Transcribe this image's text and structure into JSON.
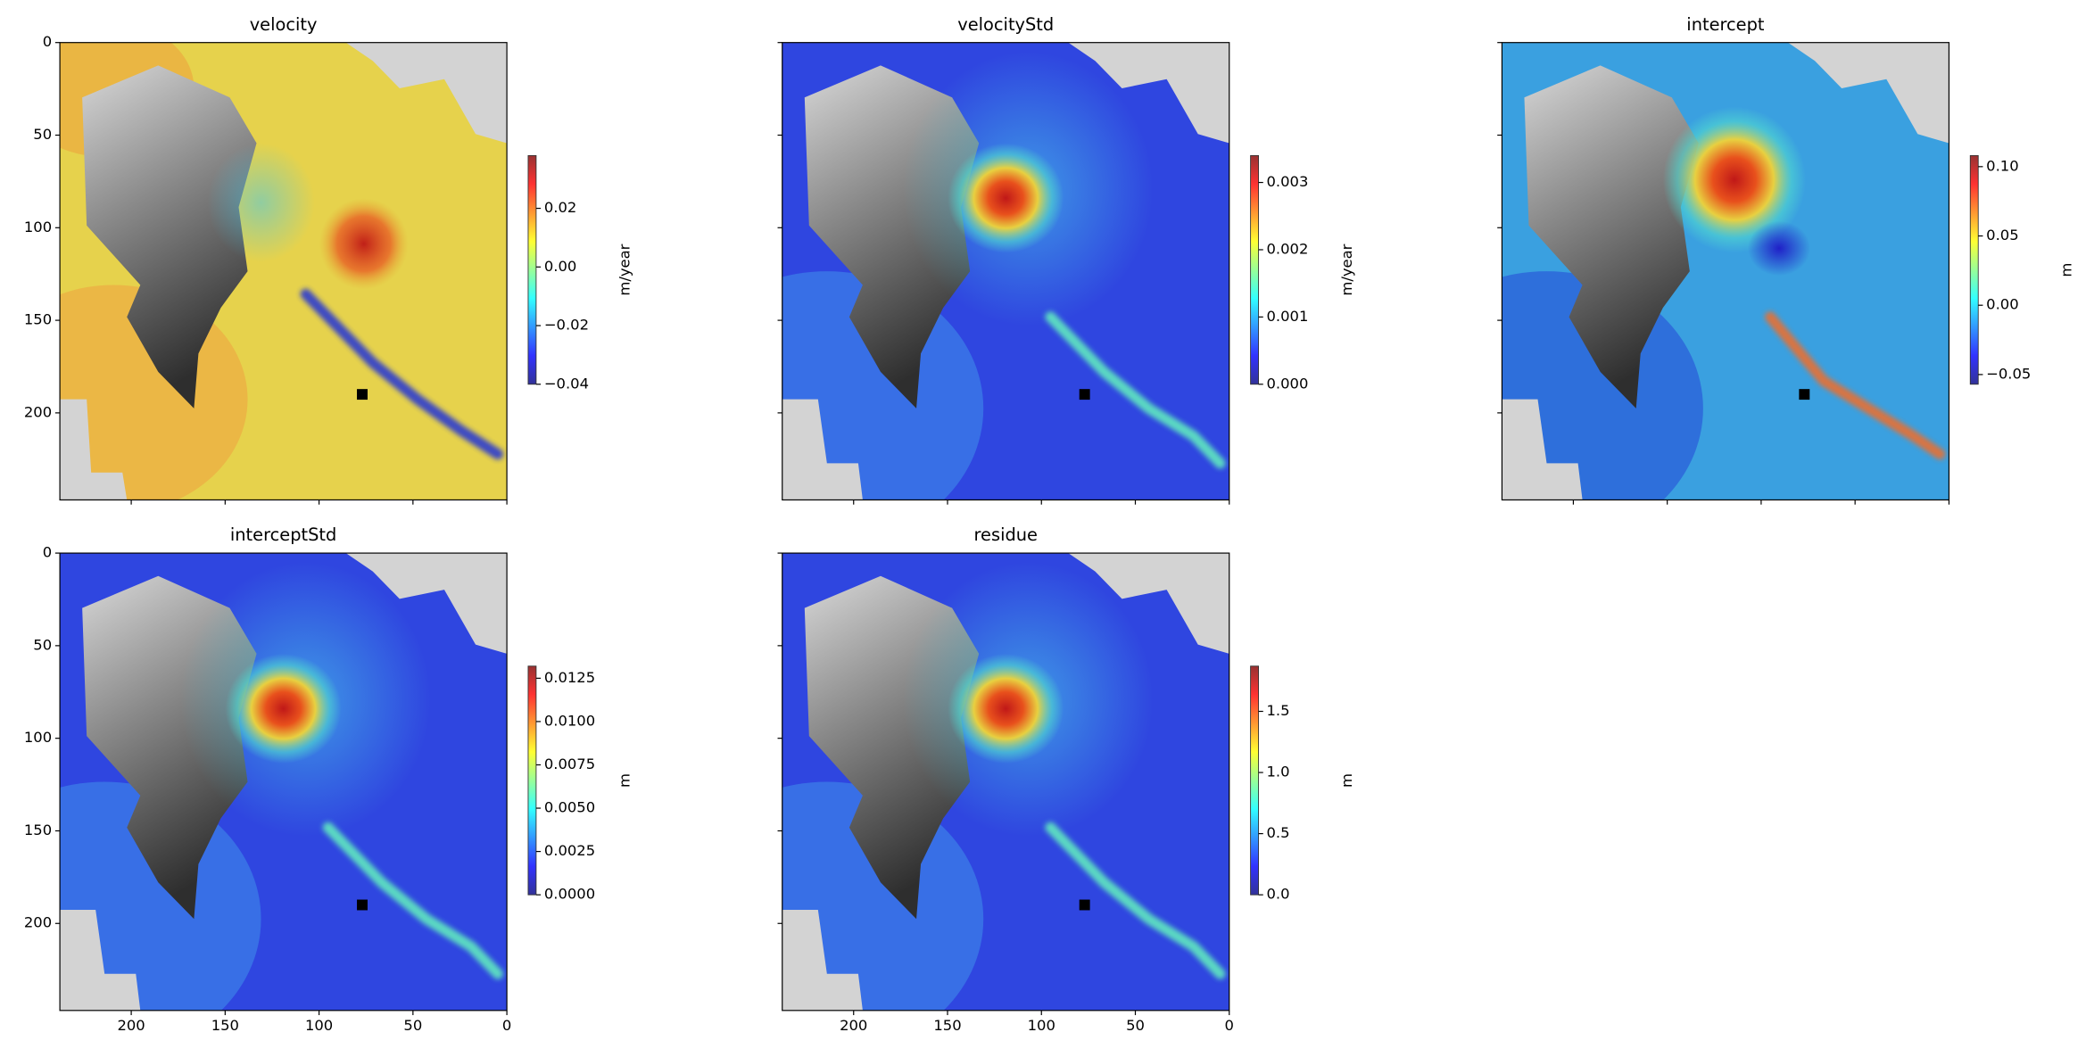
{
  "chart_data": [
    {
      "type": "heatmap",
      "title": "velocity",
      "xlim": [
        238,
        0
      ],
      "ylim": [
        247,
        0
      ],
      "xticks": [
        0,
        50,
        100,
        150,
        200
      ],
      "yticks": [
        0,
        50,
        100,
        150,
        200
      ],
      "colorbar_label": "m/year",
      "clim": [
        -0.04,
        0.038
      ],
      "cticks": [
        {
          "value": -0.04,
          "label": "−0.04"
        },
        {
          "value": -0.02,
          "label": "−0.02"
        },
        {
          "value": 0,
          "label": "0.00"
        },
        0.02
      ],
      "marker": {
        "x": 77,
        "y": 190
      }
    },
    {
      "type": "heatmap",
      "title": "velocityStd",
      "xlim": [
        238,
        0
      ],
      "ylim": [
        247,
        0
      ],
      "xticks": [
        0,
        50,
        100,
        150,
        200
      ],
      "yticks": [
        0,
        50,
        100,
        150,
        200
      ],
      "colorbar_label": "m/year",
      "clim": [
        0,
        0.0034
      ],
      "cticks": [
        {
          "value": 0,
          "label": "0.000"
        },
        0.001,
        0.002,
        0.003
      ],
      "marker": {
        "x": 77,
        "y": 190
      }
    },
    {
      "type": "heatmap",
      "title": "intercept",
      "xlim": [
        238,
        0
      ],
      "ylim": [
        247,
        0
      ],
      "xticks": [
        0,
        50,
        100,
        150,
        200
      ],
      "yticks": [
        0,
        50,
        100,
        150,
        200
      ],
      "colorbar_label": "m",
      "clim": [
        -0.057,
        0.108
      ],
      "cticks": [
        {
          "value": -0.05,
          "label": "−0.05"
        },
        {
          "value": 0,
          "label": "0.00"
        },
        0.05,
        {
          "value": 0.1,
          "label": "0.10"
        }
      ],
      "marker": {
        "x": 77,
        "y": 190
      }
    },
    {
      "type": "heatmap",
      "title": "interceptStd",
      "xlim": [
        238,
        0
      ],
      "ylim": [
        247,
        0
      ],
      "xticks": [
        0,
        50,
        100,
        150,
        200
      ],
      "yticks": [
        0,
        50,
        100,
        150,
        200
      ],
      "colorbar_label": "m",
      "clim": [
        0,
        0.0132
      ],
      "cticks": [
        {
          "value": 0,
          "label": "0.0000"
        },
        0.0025,
        {
          "value": 0.005,
          "label": "0.0050"
        },
        0.0075,
        {
          "value": 0.01,
          "label": "0.0100"
        },
        0.0125
      ],
      "marker": {
        "x": 77,
        "y": 190
      }
    },
    {
      "type": "heatmap",
      "title": "residue",
      "xlim": [
        238,
        0
      ],
      "ylim": [
        247,
        0
      ],
      "xticks": [
        0,
        50,
        100,
        150,
        200
      ],
      "yticks": [
        0,
        50,
        100,
        150,
        200
      ],
      "colorbar_label": "m",
      "clim": [
        0,
        1.87
      ],
      "cticks": [
        {
          "value": 0,
          "label": "0.0"
        },
        0.5,
        {
          "value": 1,
          "label": "1.0"
        },
        1.5
      ],
      "marker": {
        "x": 77,
        "y": 190
      }
    }
  ]
}
